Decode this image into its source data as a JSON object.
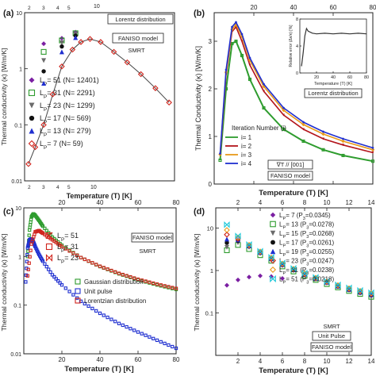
{
  "colors": {
    "purple": "#7b1fa2",
    "green": "#2e9c2e",
    "gray": "#6b6b6b",
    "black": "#111111",
    "blue": "#1f2fd0",
    "red": "#d0241c",
    "orange": "#e89a1a",
    "cyan": "#19c6d8",
    "dark_red": "#b3141b",
    "dark_blue": "#1a1a8a"
  },
  "chart_data": [
    {
      "panel": "a",
      "type": "scatter",
      "label": "(a)",
      "xscale": "log",
      "yscale": "log",
      "xlim": [
        2,
        80
      ],
      "ylim": [
        0.01,
        10
      ],
      "xlabel": "Temperature (T) [K]",
      "ylabel": "Thermal conductivity (κ) [W/m/K]",
      "top_tick_labels": [
        "2",
        "3",
        "4",
        "5",
        "10"
      ],
      "bottom_tick_labels": [
        "2",
        "3",
        "4",
        "5",
        "10"
      ],
      "y_tick_labels": [
        "10",
        "1",
        "0.1",
        "0.01"
      ],
      "annotations": [
        "Lorentz distribution",
        "FANISO model",
        "SMRT"
      ],
      "legend_placement": "center-left",
      "series": [
        {
          "label": "L",
          "sub": "P",
          "rest": "= 51  (N= 12401)",
          "marker": "diamond",
          "color": "purple",
          "x": [
            3.2,
            5,
            7
          ],
          "y": [
            2.8,
            3.5,
            4.5
          ]
        },
        {
          "label": "L",
          "sub": "P",
          "rest": "= 31  (N= 2291)",
          "marker": "square-open",
          "color": "green",
          "x": [
            3.2,
            5,
            7
          ],
          "y": [
            2.0,
            3.2,
            4.3
          ]
        },
        {
          "label": "L",
          "sub": "P",
          "rest": "= 23  (N= 1299)",
          "marker": "triangle-down",
          "color": "gray",
          "x": [
            3.2,
            5,
            7
          ],
          "y": [
            1.4,
            2.9,
            4.1
          ]
        },
        {
          "label": "L",
          "sub": "P",
          "rest": "= 17  (N= 569)",
          "marker": "circle",
          "color": "black",
          "x": [
            3.2,
            5,
            7
          ],
          "y": [
            0.9,
            2.5,
            3.9
          ]
        },
        {
          "label": "L",
          "sub": "P",
          "rest": "= 13  (N= 279)",
          "marker": "triangle-up",
          "color": "blue",
          "x": [
            3.2,
            5,
            7
          ],
          "y": [
            0.55,
            2.0,
            3.6
          ]
        },
        {
          "label": "L",
          "sub": "P",
          "rest": "= 7    (N= 59)",
          "marker": "diamond-open",
          "color": "red",
          "x": [
            2.2,
            2.6,
            3.2,
            4,
            5,
            6.5,
            8,
            10,
            13,
            18,
            25,
            35,
            50,
            70
          ],
          "y": [
            0.02,
            0.04,
            0.1,
            0.35,
            1.1,
            2.2,
            3.0,
            3.4,
            3.0,
            2.0,
            1.3,
            0.8,
            0.45,
            0.25
          ]
        }
      ]
    },
    {
      "panel": "b",
      "type": "line",
      "label": "(b)",
      "xlim": [
        0,
        80
      ],
      "ylim": [
        0,
        3.5
      ],
      "xlabel": "Temperature (T) [K]",
      "ylabel": "Thermal Conductivity (κ) [W/m/K]",
      "x_tick_labels": [
        "20",
        "40",
        "60",
        "80"
      ],
      "y_tick_labels": [
        "0",
        "1",
        "2",
        "3"
      ],
      "legend_title": "Iteration Number (i)",
      "annotations": [
        "∇T // [001]",
        "FANISO model"
      ],
      "series": [
        {
          "name": "i= 1",
          "color": "green",
          "x": [
            3,
            6,
            9,
            11,
            14,
            18,
            25,
            35,
            45,
            55,
            65,
            80
          ],
          "y": [
            0.5,
            2.0,
            2.95,
            3.0,
            2.7,
            2.2,
            1.6,
            1.15,
            0.9,
            0.72,
            0.6,
            0.48
          ]
        },
        {
          "name": "i= 2",
          "color": "dark_red",
          "x": [
            3,
            6,
            9,
            11,
            14,
            18,
            25,
            35,
            45,
            55,
            65,
            80
          ],
          "y": [
            0.6,
            2.3,
            3.2,
            3.3,
            3.0,
            2.5,
            1.95,
            1.45,
            1.15,
            0.95,
            0.82,
            0.66
          ]
        },
        {
          "name": "i= 3",
          "color": "orange",
          "x": [
            3,
            6,
            9,
            11,
            14,
            18,
            25,
            35,
            45,
            55,
            65,
            80
          ],
          "y": [
            0.62,
            2.35,
            3.25,
            3.35,
            3.1,
            2.6,
            2.05,
            1.55,
            1.25,
            1.05,
            0.9,
            0.72
          ]
        },
        {
          "name": "i= 4",
          "color": "blue",
          "x": [
            3,
            6,
            9,
            11,
            14,
            18,
            25,
            35,
            45,
            55,
            65,
            80
          ],
          "y": [
            0.64,
            2.4,
            3.3,
            3.4,
            3.15,
            2.65,
            2.1,
            1.6,
            1.3,
            1.1,
            0.95,
            0.76
          ]
        }
      ],
      "inset": {
        "xlim": [
          0,
          80
        ],
        "ylim": [
          0,
          8
        ],
        "xlabel": "Temperature (T) [K]",
        "ylabel": "Relative error (Δκ/κ) [%]",
        "x_tick_labels": [
          "20",
          "40",
          "60",
          "80"
        ],
        "y_tick_labels": [
          "0",
          "4",
          "8"
        ],
        "title": "Lorentz distribution",
        "x": [
          2,
          4,
          6,
          8,
          10,
          15,
          20,
          30,
          40,
          50,
          60,
          70,
          80
        ],
        "y": [
          1.0,
          3.0,
          5.5,
          6.6,
          6.2,
          5.9,
          5.8,
          5.9,
          5.8,
          5.9,
          5.8,
          5.9,
          5.8
        ]
      }
    },
    {
      "panel": "c",
      "type": "scatter",
      "label": "(c)",
      "yscale": "log",
      "xlim": [
        0,
        80
      ],
      "ylim": [
        0.01,
        10
      ],
      "xlabel": "Temperature (T) [K]",
      "ylabel": "Thermal conductivity (κ) [W/m/K]",
      "x_tick_labels": [
        "20",
        "40",
        "60",
        "80"
      ],
      "y_tick_labels": [
        "10",
        "1",
        "0.1",
        "0.01"
      ],
      "annotations": [
        "FANISO model",
        "SMRT"
      ],
      "lp_legend": [
        {
          "label": "L",
          "sub": "P",
          "rest": "= 51",
          "marker": "hourglass"
        },
        {
          "label": "L",
          "sub": "P",
          "rest": "= 31",
          "marker": "square-open"
        },
        {
          "label": "L",
          "sub": "P",
          "rest": "= 23",
          "marker": "bowtie"
        }
      ],
      "series": [
        {
          "name": "Gaussian distribution",
          "color": "green",
          "x": [
            2,
            3,
            4,
            5,
            6,
            8,
            10,
            15,
            20,
            30,
            40,
            50,
            60,
            70,
            80
          ],
          "y": [
            1.0,
            3.5,
            6.5,
            7.5,
            7.0,
            5.5,
            4.2,
            2.5,
            1.7,
            0.95,
            0.62,
            0.44,
            0.33,
            0.26,
            0.21
          ]
        },
        {
          "name": "Unit pulse",
          "color": "blue",
          "x": [
            1,
            2,
            3,
            4,
            5,
            6,
            8,
            10,
            15,
            20,
            30,
            40,
            50,
            60,
            70,
            80
          ],
          "y": [
            0.3,
            1.5,
            2.2,
            2.3,
            2.0,
            1.6,
            1.1,
            0.8,
            0.42,
            0.26,
            0.12,
            0.068,
            0.042,
            0.028,
            0.019,
            0.013
          ]
        },
        {
          "name": "Lorentzian distribution",
          "color": "red",
          "x": [
            2,
            4,
            6,
            8,
            10,
            15,
            20,
            30,
            40,
            50,
            60,
            70,
            80
          ],
          "y": [
            0.4,
            1.8,
            3.2,
            3.4,
            3.0,
            2.2,
            1.6,
            0.95,
            0.63,
            0.45,
            0.34,
            0.27,
            0.22
          ]
        }
      ]
    },
    {
      "panel": "d",
      "type": "scatter",
      "label": "(d)",
      "yscale": "log",
      "xlim": [
        0,
        14
      ],
      "ylim": [
        0.01,
        30
      ],
      "xlabel": "Temperature (T) [K]",
      "ylabel": "Thermal conductivity (κ) [W/m/K]",
      "x_tick_labels": [
        "2",
        "4",
        "6",
        "8",
        "10",
        "12",
        "14"
      ],
      "y_tick_labels": [
        "10",
        "1",
        "0.1"
      ],
      "annotations": [
        "SMRT",
        "Unit Pulse",
        "FANISO model"
      ],
      "series": [
        {
          "label": "L",
          "sub": "P",
          "rest": "= 7   (P",
          "sub2": "3",
          "rest2": "=0.0345)",
          "marker": "diamond",
          "color": "purple",
          "x": [
            1,
            2,
            3,
            4,
            5,
            6
          ],
          "y": [
            0.45,
            0.6,
            0.7,
            0.75,
            0.72,
            0.65
          ]
        },
        {
          "label": "L",
          "sub": "P",
          "rest": "= 13  (P",
          "sub2": "3",
          "rest2": "=0.0278)",
          "marker": "square-open",
          "color": "green",
          "x": [
            1,
            2,
            3,
            4,
            5,
            6,
            7,
            8,
            9,
            10,
            11,
            12,
            13,
            14
          ],
          "y": [
            3.0,
            4.0,
            3.2,
            2.3,
            1.7,
            1.25,
            0.95,
            0.75,
            0.6,
            0.48,
            0.4,
            0.33,
            0.28,
            0.24
          ]
        },
        {
          "label": "L",
          "sub": "P",
          "rest": "= 15  (P",
          "sub2": "3",
          "rest2": "=0.0268)",
          "marker": "triangle-down",
          "color": "gray",
          "x": [
            1,
            2,
            3,
            4,
            5,
            6,
            7,
            8,
            9,
            10,
            11,
            12,
            13,
            14
          ],
          "y": [
            3.5,
            4.5,
            3.5,
            2.5,
            1.8,
            1.3,
            1.0,
            0.78,
            0.62,
            0.5,
            0.41,
            0.34,
            0.29,
            0.25
          ]
        },
        {
          "label": "L",
          "sub": "P",
          "rest": "= 17  (P",
          "sub2": "3",
          "rest2": "=0.0261)",
          "marker": "circle",
          "color": "black",
          "x": [
            1,
            2,
            3,
            4,
            5,
            6,
            7,
            8,
            9,
            10,
            11,
            12,
            13,
            14
          ],
          "y": [
            4.5,
            5.0,
            3.7,
            2.6,
            1.85,
            1.35,
            1.02,
            0.8,
            0.64,
            0.52,
            0.42,
            0.35,
            0.3,
            0.26
          ]
        },
        {
          "label": "L",
          "sub": "P",
          "rest": "= 19  (P",
          "sub2": "3",
          "rest2": "=0.0255)",
          "marker": "triangle-up",
          "color": "blue",
          "x": [
            1,
            2,
            3,
            4,
            5,
            6,
            7,
            8,
            9,
            10,
            11,
            12,
            13,
            14
          ],
          "y": [
            5.5,
            5.3,
            3.8,
            2.7,
            1.9,
            1.4,
            1.05,
            0.82,
            0.65,
            0.53,
            0.43,
            0.36,
            0.31,
            0.27
          ]
        },
        {
          "label": "L",
          "sub": "P",
          "rest": "= 23  (P",
          "sub2": "3",
          "rest2": "=0.0247)",
          "marker": "diamond-open",
          "color": "red",
          "x": [
            1,
            2,
            3,
            4,
            5,
            6,
            7,
            8,
            9,
            10,
            11,
            12,
            13,
            14
          ],
          "y": [
            7.0,
            5.6,
            3.9,
            2.75,
            1.95,
            1.42,
            1.07,
            0.83,
            0.66,
            0.54,
            0.44,
            0.37,
            0.32,
            0.28
          ]
        },
        {
          "label": "L",
          "sub": "P",
          "rest": "= 31  (P",
          "sub2": "3",
          "rest2": "=0.0238)",
          "marker": "diamond-open",
          "color": "orange",
          "x": [
            1,
            2,
            3,
            4,
            5,
            6,
            7,
            8,
            9,
            10,
            11,
            12,
            13,
            14
          ],
          "y": [
            9.0,
            6.0,
            4.0,
            2.8,
            2.0,
            1.45,
            1.09,
            0.85,
            0.67,
            0.55,
            0.45,
            0.38,
            0.33,
            0.29
          ]
        },
        {
          "label": "L",
          "sub": "P",
          "rest": "= 51  (P",
          "sub2": "3",
          "rest2": "=0.0218)",
          "marker": "bowtie",
          "color": "cyan",
          "x": [
            1,
            2,
            3,
            4,
            5,
            6,
            7,
            8,
            9,
            10,
            11,
            12,
            13,
            14
          ],
          "y": [
            12.0,
            6.5,
            4.1,
            2.85,
            2.05,
            1.5,
            1.12,
            0.87,
            0.69,
            0.56,
            0.46,
            0.39,
            0.34,
            0.3
          ]
        }
      ]
    }
  ]
}
